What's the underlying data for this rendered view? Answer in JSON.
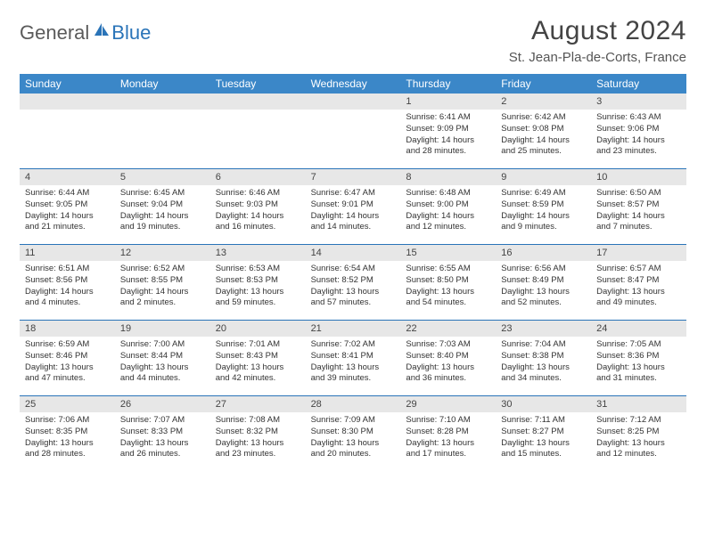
{
  "logo": {
    "general": "General",
    "blue": "Blue"
  },
  "title": "August 2024",
  "location": "St. Jean-Pla-de-Corts, France",
  "colors": {
    "header_bar": "#3b87c8",
    "week_divider": "#2a74b8",
    "daynum_band": "#e7e7e7",
    "text": "#333333",
    "title_text": "#444444",
    "logo_gray": "#5a5a5a",
    "logo_blue": "#2a74b8",
    "background": "#ffffff"
  },
  "dow": [
    "Sunday",
    "Monday",
    "Tuesday",
    "Wednesday",
    "Thursday",
    "Friday",
    "Saturday"
  ],
  "weeks": [
    [
      null,
      null,
      null,
      null,
      {
        "n": "1",
        "sr": "Sunrise: 6:41 AM",
        "ss": "Sunset: 9:09 PM",
        "d1": "Daylight: 14 hours",
        "d2": "and 28 minutes."
      },
      {
        "n": "2",
        "sr": "Sunrise: 6:42 AM",
        "ss": "Sunset: 9:08 PM",
        "d1": "Daylight: 14 hours",
        "d2": "and 25 minutes."
      },
      {
        "n": "3",
        "sr": "Sunrise: 6:43 AM",
        "ss": "Sunset: 9:06 PM",
        "d1": "Daylight: 14 hours",
        "d2": "and 23 minutes."
      }
    ],
    [
      {
        "n": "4",
        "sr": "Sunrise: 6:44 AM",
        "ss": "Sunset: 9:05 PM",
        "d1": "Daylight: 14 hours",
        "d2": "and 21 minutes."
      },
      {
        "n": "5",
        "sr": "Sunrise: 6:45 AM",
        "ss": "Sunset: 9:04 PM",
        "d1": "Daylight: 14 hours",
        "d2": "and 19 minutes."
      },
      {
        "n": "6",
        "sr": "Sunrise: 6:46 AM",
        "ss": "Sunset: 9:03 PM",
        "d1": "Daylight: 14 hours",
        "d2": "and 16 minutes."
      },
      {
        "n": "7",
        "sr": "Sunrise: 6:47 AM",
        "ss": "Sunset: 9:01 PM",
        "d1": "Daylight: 14 hours",
        "d2": "and 14 minutes."
      },
      {
        "n": "8",
        "sr": "Sunrise: 6:48 AM",
        "ss": "Sunset: 9:00 PM",
        "d1": "Daylight: 14 hours",
        "d2": "and 12 minutes."
      },
      {
        "n": "9",
        "sr": "Sunrise: 6:49 AM",
        "ss": "Sunset: 8:59 PM",
        "d1": "Daylight: 14 hours",
        "d2": "and 9 minutes."
      },
      {
        "n": "10",
        "sr": "Sunrise: 6:50 AM",
        "ss": "Sunset: 8:57 PM",
        "d1": "Daylight: 14 hours",
        "d2": "and 7 minutes."
      }
    ],
    [
      {
        "n": "11",
        "sr": "Sunrise: 6:51 AM",
        "ss": "Sunset: 8:56 PM",
        "d1": "Daylight: 14 hours",
        "d2": "and 4 minutes."
      },
      {
        "n": "12",
        "sr": "Sunrise: 6:52 AM",
        "ss": "Sunset: 8:55 PM",
        "d1": "Daylight: 14 hours",
        "d2": "and 2 minutes."
      },
      {
        "n": "13",
        "sr": "Sunrise: 6:53 AM",
        "ss": "Sunset: 8:53 PM",
        "d1": "Daylight: 13 hours",
        "d2": "and 59 minutes."
      },
      {
        "n": "14",
        "sr": "Sunrise: 6:54 AM",
        "ss": "Sunset: 8:52 PM",
        "d1": "Daylight: 13 hours",
        "d2": "and 57 minutes."
      },
      {
        "n": "15",
        "sr": "Sunrise: 6:55 AM",
        "ss": "Sunset: 8:50 PM",
        "d1": "Daylight: 13 hours",
        "d2": "and 54 minutes."
      },
      {
        "n": "16",
        "sr": "Sunrise: 6:56 AM",
        "ss": "Sunset: 8:49 PM",
        "d1": "Daylight: 13 hours",
        "d2": "and 52 minutes."
      },
      {
        "n": "17",
        "sr": "Sunrise: 6:57 AM",
        "ss": "Sunset: 8:47 PM",
        "d1": "Daylight: 13 hours",
        "d2": "and 49 minutes."
      }
    ],
    [
      {
        "n": "18",
        "sr": "Sunrise: 6:59 AM",
        "ss": "Sunset: 8:46 PM",
        "d1": "Daylight: 13 hours",
        "d2": "and 47 minutes."
      },
      {
        "n": "19",
        "sr": "Sunrise: 7:00 AM",
        "ss": "Sunset: 8:44 PM",
        "d1": "Daylight: 13 hours",
        "d2": "and 44 minutes."
      },
      {
        "n": "20",
        "sr": "Sunrise: 7:01 AM",
        "ss": "Sunset: 8:43 PM",
        "d1": "Daylight: 13 hours",
        "d2": "and 42 minutes."
      },
      {
        "n": "21",
        "sr": "Sunrise: 7:02 AM",
        "ss": "Sunset: 8:41 PM",
        "d1": "Daylight: 13 hours",
        "d2": "and 39 minutes."
      },
      {
        "n": "22",
        "sr": "Sunrise: 7:03 AM",
        "ss": "Sunset: 8:40 PM",
        "d1": "Daylight: 13 hours",
        "d2": "and 36 minutes."
      },
      {
        "n": "23",
        "sr": "Sunrise: 7:04 AM",
        "ss": "Sunset: 8:38 PM",
        "d1": "Daylight: 13 hours",
        "d2": "and 34 minutes."
      },
      {
        "n": "24",
        "sr": "Sunrise: 7:05 AM",
        "ss": "Sunset: 8:36 PM",
        "d1": "Daylight: 13 hours",
        "d2": "and 31 minutes."
      }
    ],
    [
      {
        "n": "25",
        "sr": "Sunrise: 7:06 AM",
        "ss": "Sunset: 8:35 PM",
        "d1": "Daylight: 13 hours",
        "d2": "and 28 minutes."
      },
      {
        "n": "26",
        "sr": "Sunrise: 7:07 AM",
        "ss": "Sunset: 8:33 PM",
        "d1": "Daylight: 13 hours",
        "d2": "and 26 minutes."
      },
      {
        "n": "27",
        "sr": "Sunrise: 7:08 AM",
        "ss": "Sunset: 8:32 PM",
        "d1": "Daylight: 13 hours",
        "d2": "and 23 minutes."
      },
      {
        "n": "28",
        "sr": "Sunrise: 7:09 AM",
        "ss": "Sunset: 8:30 PM",
        "d1": "Daylight: 13 hours",
        "d2": "and 20 minutes."
      },
      {
        "n": "29",
        "sr": "Sunrise: 7:10 AM",
        "ss": "Sunset: 8:28 PM",
        "d1": "Daylight: 13 hours",
        "d2": "and 17 minutes."
      },
      {
        "n": "30",
        "sr": "Sunrise: 7:11 AM",
        "ss": "Sunset: 8:27 PM",
        "d1": "Daylight: 13 hours",
        "d2": "and 15 minutes."
      },
      {
        "n": "31",
        "sr": "Sunrise: 7:12 AM",
        "ss": "Sunset: 8:25 PM",
        "d1": "Daylight: 13 hours",
        "d2": "and 12 minutes."
      }
    ]
  ]
}
